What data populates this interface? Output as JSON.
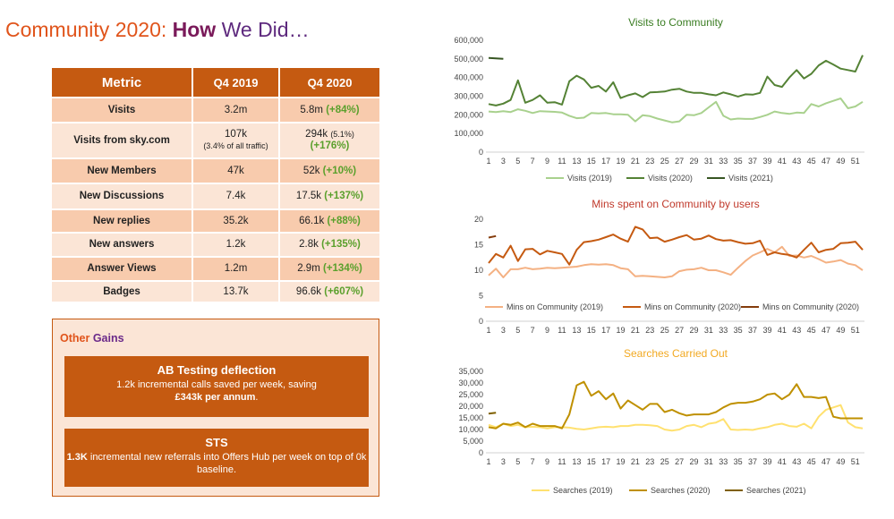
{
  "page": {
    "title_part1": "Community 2020: ",
    "title_bold": "How",
    "title_part2": " We Did…"
  },
  "table": {
    "headers": [
      "Metric",
      "Q4 2019",
      "Q4 2020"
    ],
    "rows": [
      {
        "metric": "Visits",
        "q4_2019": "3.2m",
        "q4_2020": "5.8m",
        "change": "(+84%)"
      },
      {
        "metric": "Visits from sky.com",
        "q4_2019": "107k",
        "q4_2019_note": "(3.4% of all traffic)",
        "q4_2020": "294k",
        "q4_2020_note": "(5.1%)",
        "change": "(+176%)"
      },
      {
        "metric": "New Members",
        "q4_2019": "47k",
        "q4_2020": "52k",
        "change": "(+10%)"
      },
      {
        "metric": "New Discussions",
        "q4_2019": "7.4k",
        "q4_2020": "17.5k",
        "change": "(+137%)"
      },
      {
        "metric": "New replies",
        "q4_2019": "35.2k",
        "q4_2020": "66.1k",
        "change": "(+88%)"
      },
      {
        "metric": "New answers",
        "q4_2019": "1.2k",
        "q4_2020": "2.8k",
        "change": "(+135%)"
      },
      {
        "metric": "Answer Views",
        "q4_2019": "1.2m",
        "q4_2020": "2.9m",
        "change": "(+134%)"
      },
      {
        "metric": "Badges",
        "q4_2019": "13.7k",
        "q4_2020": "96.6k",
        "change": "(+607%)"
      }
    ]
  },
  "other_gains": {
    "title_part1": "Other ",
    "title_part2": "Gains",
    "box1": {
      "heading": "AB Testing deflection",
      "line1": "1.2k incremental calls saved per week, saving",
      "line2_bold": "£343k per annum",
      "line2_rest": "."
    },
    "box2": {
      "heading": "STS",
      "bold": "1.3K",
      "text": " incremental new referrals into Offers Hub per week on top of 0k baseline."
    }
  },
  "chart_data": [
    {
      "type": "line",
      "title": "Visits to Community",
      "title_color": "#3a7d22",
      "ylim": [
        0,
        600000
      ],
      "yticks": [
        0,
        100000,
        200000,
        300000,
        400000,
        500000,
        600000
      ],
      "ytick_labels": [
        "0",
        "100,000",
        "200,000",
        "300,000",
        "400,000",
        "500,000",
        "600,000"
      ],
      "xticks": [
        "1",
        "3",
        "5",
        "7",
        "9",
        "11",
        "13",
        "15",
        "17",
        "19",
        "21",
        "23",
        "25",
        "27",
        "29",
        "31",
        "33",
        "35",
        "37",
        "39",
        "41",
        "43",
        "45",
        "47",
        "49",
        "51"
      ],
      "series": [
        {
          "name": "Visits (2019)",
          "color": "#a9d18e",
          "x": [
            1,
            2,
            3,
            4,
            5,
            6,
            7,
            8,
            9,
            10,
            11,
            12,
            13,
            14,
            15,
            16,
            17,
            18,
            19,
            20,
            21,
            22,
            23,
            24,
            25,
            26,
            27,
            28,
            29,
            30,
            31,
            32,
            33,
            34,
            35,
            36,
            37,
            38,
            39,
            40,
            41,
            42,
            43,
            44,
            45,
            46,
            47,
            48,
            49,
            50,
            51,
            52
          ],
          "values": [
            218000,
            215000,
            220000,
            215000,
            230000,
            222000,
            210000,
            220000,
            218000,
            216000,
            212000,
            195000,
            182000,
            185000,
            210000,
            208000,
            210000,
            203000,
            203000,
            200000,
            165000,
            198000,
            193000,
            180000,
            170000,
            160000,
            165000,
            200000,
            198000,
            210000,
            240000,
            270000,
            195000,
            175000,
            180000,
            178000,
            178000,
            188000,
            200000,
            218000,
            210000,
            205000,
            212000,
            210000,
            258000,
            245000,
            262000,
            275000,
            288000,
            235000,
            245000,
            270000
          ]
        },
        {
          "name": "Visits (2020)",
          "color": "#548235",
          "x": [
            1,
            2,
            3,
            4,
            5,
            6,
            7,
            8,
            9,
            10,
            11,
            12,
            13,
            14,
            15,
            16,
            17,
            18,
            19,
            20,
            21,
            22,
            23,
            24,
            25,
            26,
            27,
            28,
            29,
            30,
            31,
            32,
            33,
            34,
            35,
            36,
            37,
            38,
            39,
            40,
            41,
            42,
            43,
            44,
            45,
            46,
            47,
            48,
            49,
            50,
            51,
            52
          ],
          "values": [
            258000,
            250000,
            260000,
            280000,
            385000,
            265000,
            280000,
            305000,
            265000,
            268000,
            255000,
            380000,
            410000,
            390000,
            345000,
            355000,
            325000,
            375000,
            290000,
            305000,
            315000,
            295000,
            320000,
            322000,
            325000,
            335000,
            340000,
            325000,
            318000,
            318000,
            310000,
            305000,
            320000,
            310000,
            298000,
            310000,
            308000,
            318000,
            405000,
            360000,
            350000,
            400000,
            440000,
            395000,
            420000,
            465000,
            490000,
            470000,
            448000,
            440000,
            432000,
            520000
          ]
        },
        {
          "name": "Visits (2021)",
          "color": "#375623",
          "x": [
            1,
            2,
            3
          ],
          "values": [
            505000,
            503000,
            500000
          ]
        }
      ]
    },
    {
      "type": "line",
      "title": "Mins spent on Community by users",
      "title_color": "#c0392b",
      "ylim": [
        0,
        20
      ],
      "yticks": [
        0,
        5,
        10,
        15,
        20
      ],
      "ytick_labels": [
        "0",
        "5",
        "10",
        "15",
        "20"
      ],
      "xticks": [
        "1",
        "3",
        "5",
        "7",
        "9",
        "11",
        "13",
        "15",
        "17",
        "19",
        "21",
        "23",
        "25",
        "27",
        "29",
        "31",
        "33",
        "35",
        "37",
        "39",
        "41",
        "43",
        "45",
        "47",
        "49",
        "51"
      ],
      "series": [
        {
          "name": "Mins on Community (2019)",
          "color": "#f4b183",
          "x": [
            1,
            2,
            3,
            4,
            5,
            6,
            7,
            8,
            9,
            10,
            11,
            12,
            13,
            14,
            15,
            16,
            17,
            18,
            19,
            20,
            21,
            22,
            23,
            24,
            25,
            26,
            27,
            28,
            29,
            30,
            31,
            32,
            33,
            34,
            35,
            36,
            37,
            38,
            39,
            40,
            41,
            42,
            43,
            44,
            45,
            46,
            47,
            48,
            49,
            50,
            51,
            52
          ],
          "values": [
            9.0,
            10.3,
            8.6,
            10.2,
            10.2,
            10.5,
            10.2,
            10.3,
            10.5,
            10.4,
            10.5,
            10.6,
            10.7,
            11.0,
            11.2,
            11.1,
            11.2,
            11.0,
            10.4,
            10.2,
            8.8,
            8.9,
            8.8,
            8.7,
            8.6,
            8.8,
            9.8,
            10.1,
            10.2,
            10.5,
            10.0,
            10.0,
            9.6,
            9.1,
            10.5,
            11.8,
            12.9,
            13.5,
            14.2,
            13.5,
            14.6,
            12.8,
            12.9,
            12.5,
            12.8,
            12.2,
            11.5,
            11.7,
            12.0,
            11.3,
            11.0,
            10.0
          ]
        },
        {
          "name": "Mins on Community (2020)",
          "color": "#c55a11",
          "x": [
            1,
            2,
            3,
            4,
            5,
            6,
            7,
            8,
            9,
            10,
            11,
            12,
            13,
            14,
            15,
            16,
            17,
            18,
            19,
            20,
            21,
            22,
            23,
            24,
            25,
            26,
            27,
            28,
            29,
            30,
            31,
            32,
            33,
            34,
            35,
            36,
            37,
            38,
            39,
            40,
            41,
            42,
            43,
            44,
            45,
            46,
            47,
            48,
            49,
            50,
            51,
            52
          ],
          "values": [
            11.4,
            13.2,
            12.5,
            14.8,
            11.8,
            14.1,
            14.2,
            13.1,
            13.8,
            13.5,
            13.2,
            11.1,
            14.0,
            15.5,
            15.7,
            16.0,
            16.5,
            17.0,
            16.2,
            15.6,
            18.5,
            18.0,
            16.3,
            16.4,
            15.6,
            16.0,
            16.5,
            16.9,
            16.0,
            16.2,
            16.8,
            16.1,
            15.8,
            15.9,
            15.5,
            15.2,
            15.3,
            15.8,
            13.0,
            13.5,
            13.2,
            13.0,
            12.5,
            14.0,
            15.4,
            13.5,
            14.0,
            14.2,
            15.3,
            15.4,
            15.6,
            14.0
          ]
        },
        {
          "name": "Mins on Community (2020)",
          "color": "#843c0c",
          "x": [
            1,
            2
          ],
          "values": [
            16.4,
            16.7
          ]
        }
      ]
    },
    {
      "type": "line",
      "title": "Searches Carried Out",
      "title_color": "#f2a922",
      "ylim": [
        0,
        35000
      ],
      "yticks": [
        0,
        5000,
        10000,
        15000,
        20000,
        25000,
        30000,
        35000
      ],
      "ytick_labels": [
        "0",
        "5,000",
        "10,000",
        "15,000",
        "20,000",
        "25,000",
        "30,000",
        "35,000"
      ],
      "xticks": [
        "1",
        "3",
        "5",
        "7",
        "9",
        "11",
        "13",
        "15",
        "17",
        "19",
        "21",
        "23",
        "25",
        "27",
        "29",
        "31",
        "33",
        "35",
        "37",
        "39",
        "41",
        "43",
        "45",
        "47",
        "49",
        "51"
      ],
      "series": [
        {
          "name": "Searches (2019)",
          "color": "#ffe170",
          "x": [
            1,
            2,
            3,
            4,
            5,
            6,
            7,
            8,
            9,
            10,
            11,
            12,
            13,
            14,
            15,
            16,
            17,
            18,
            19,
            20,
            21,
            22,
            23,
            24,
            25,
            26,
            27,
            28,
            29,
            30,
            31,
            32,
            33,
            34,
            35,
            36,
            37,
            38,
            39,
            40,
            41,
            42,
            43,
            44,
            45,
            46,
            47,
            48,
            49,
            50,
            51,
            52
          ],
          "values": [
            12000,
            11000,
            12500,
            11500,
            12000,
            11000,
            11200,
            11000,
            10500,
            11000,
            11000,
            10800,
            10300,
            10000,
            10500,
            11000,
            11200,
            11000,
            11500,
            11500,
            12000,
            12000,
            11800,
            11500,
            10000,
            9500,
            10000,
            11500,
            12000,
            11000,
            12500,
            13000,
            14500,
            10000,
            9800,
            10000,
            9800,
            10500,
            11000,
            12000,
            12500,
            11500,
            11200,
            12500,
            10500,
            15500,
            18500,
            19500,
            20500,
            13000,
            11000,
            10500
          ]
        },
        {
          "name": "Searches (2020)",
          "color": "#bf9000",
          "x": [
            1,
            2,
            3,
            4,
            5,
            6,
            7,
            8,
            9,
            10,
            11,
            12,
            13,
            14,
            15,
            16,
            17,
            18,
            19,
            20,
            21,
            22,
            23,
            24,
            25,
            26,
            27,
            28,
            29,
            30,
            31,
            32,
            33,
            34,
            35,
            36,
            37,
            38,
            39,
            40,
            41,
            42,
            43,
            44,
            45,
            46,
            47,
            48,
            49,
            50,
            51,
            52
          ],
          "values": [
            11000,
            10500,
            12500,
            12000,
            13000,
            11000,
            12500,
            11500,
            11500,
            11500,
            10500,
            16500,
            29000,
            30500,
            24500,
            26500,
            23000,
            25500,
            19000,
            22500,
            20500,
            18500,
            21000,
            21000,
            17500,
            18500,
            17000,
            16000,
            16500,
            16500,
            16500,
            17500,
            19500,
            21000,
            21500,
            21500,
            22000,
            23000,
            25000,
            25500,
            23000,
            25000,
            29500,
            24000,
            24000,
            23500,
            24000,
            15500,
            14800,
            14800,
            14800,
            14800
          ]
        },
        {
          "name": "Searches (2021)",
          "color": "#7f6000",
          "x": [
            1,
            2
          ],
          "values": [
            16800,
            17200
          ]
        }
      ]
    }
  ]
}
